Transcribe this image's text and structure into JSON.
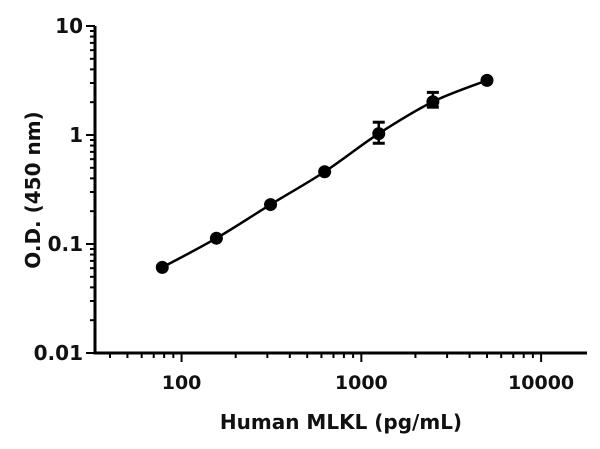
{
  "chart_data": {
    "type": "scatter",
    "title": "",
    "xlabel": "Human MLKL (pg/mL)",
    "ylabel": "O.D. (450 nm)",
    "x_scale": "log",
    "y_scale": "log",
    "xlim": [
      33,
      18000
    ],
    "ylim": [
      0.01,
      10
    ],
    "x_ticks": [
      {
        "value": 100,
        "label": "100"
      },
      {
        "value": 1000,
        "label": "1000"
      },
      {
        "value": 10000,
        "label": "10000"
      }
    ],
    "y_ticks": [
      {
        "value": 0.01,
        "label": "0.01"
      },
      {
        "value": 0.1,
        "label": "0.1"
      },
      {
        "value": 1,
        "label": "1"
      },
      {
        "value": 10,
        "label": "10"
      }
    ],
    "grid": false,
    "fit_curve": true,
    "color": "#000000",
    "points": [
      {
        "x": 78.125,
        "y": 0.061
      },
      {
        "x": 156.25,
        "y": 0.113
      },
      {
        "x": 312.5,
        "y": 0.23
      },
      {
        "x": 625,
        "y": 0.46
      },
      {
        "x": 1250,
        "y": 1.03,
        "err_low": 0.84,
        "err_high": 1.31
      },
      {
        "x": 2500,
        "y": 2.02,
        "err_low": 1.8,
        "err_high": 2.46
      },
      {
        "x": 5000,
        "y": 3.17
      }
    ]
  }
}
